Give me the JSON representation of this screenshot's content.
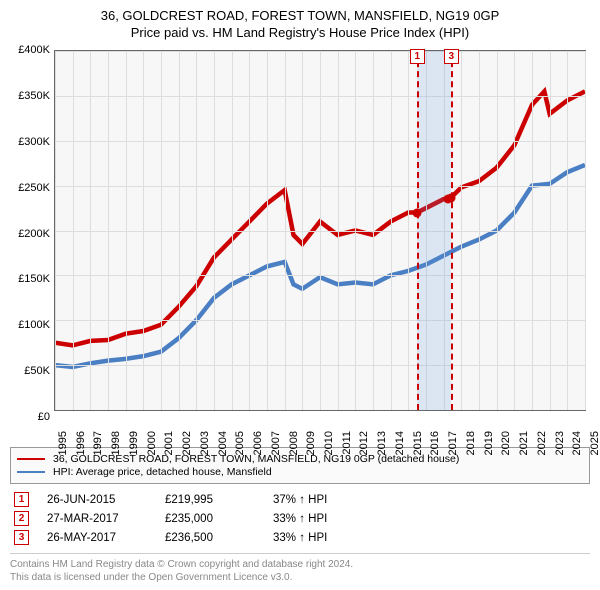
{
  "title_line1": "36, GOLDCREST ROAD, FOREST TOWN, MANSFIELD, NG19 0GP",
  "title_line2": "Price paid vs. HM Land Registry's House Price Index (HPI)",
  "chart": {
    "type": "line",
    "background_color": "#f7f7f7",
    "border_color": "#666666",
    "grid_color": "#dddddd",
    "ylim": [
      0,
      400000
    ],
    "ytick_step": 50000,
    "ytick_labels": [
      "£0",
      "£50K",
      "£100K",
      "£150K",
      "£200K",
      "£250K",
      "£300K",
      "£350K",
      "£400K"
    ],
    "xlim": [
      1995,
      2025
    ],
    "xtick_step": 1,
    "xtick_labels": [
      "1995",
      "1996",
      "1997",
      "1998",
      "1999",
      "2000",
      "2001",
      "2002",
      "2003",
      "2004",
      "2005",
      "2006",
      "2007",
      "2008",
      "2009",
      "2010",
      "2011",
      "2012",
      "2013",
      "2014",
      "2015",
      "2016",
      "2017",
      "2018",
      "2019",
      "2020",
      "2021",
      "2022",
      "2023",
      "2024",
      "2025"
    ],
    "label_fontsize": 11,
    "series": {
      "property": {
        "color": "#cc0000",
        "line_width": 1.5,
        "legend_label": "36, GOLDCREST ROAD, FOREST TOWN, MANSFIELD, NG19 0GP (detached house)",
        "data": [
          [
            1995,
            75000
          ],
          [
            1996,
            72000
          ],
          [
            1997,
            77000
          ],
          [
            1998,
            78000
          ],
          [
            1999,
            85000
          ],
          [
            2000,
            88000
          ],
          [
            2001,
            95000
          ],
          [
            2002,
            115000
          ],
          [
            2003,
            138000
          ],
          [
            2004,
            170000
          ],
          [
            2005,
            190000
          ],
          [
            2006,
            210000
          ],
          [
            2007,
            230000
          ],
          [
            2008,
            245000
          ],
          [
            2008.5,
            195000
          ],
          [
            2009,
            185000
          ],
          [
            2010,
            210000
          ],
          [
            2011,
            195000
          ],
          [
            2012,
            200000
          ],
          [
            2013,
            195000
          ],
          [
            2014,
            210000
          ],
          [
            2015,
            220000
          ],
          [
            2015.5,
            219995
          ],
          [
            2016,
            225000
          ],
          [
            2017,
            235000
          ],
          [
            2017.4,
            236500
          ],
          [
            2018,
            248000
          ],
          [
            2019,
            255000
          ],
          [
            2020,
            270000
          ],
          [
            2021,
            295000
          ],
          [
            2022,
            340000
          ],
          [
            2022.7,
            355000
          ],
          [
            2023,
            330000
          ],
          [
            2024,
            345000
          ],
          [
            2025,
            355000
          ]
        ]
      },
      "hpi": {
        "color": "#4a7fc4",
        "line_width": 1.5,
        "legend_label": "HPI: Average price, detached house, Mansfield",
        "data": [
          [
            1995,
            50000
          ],
          [
            1996,
            48000
          ],
          [
            1997,
            52000
          ],
          [
            1998,
            55000
          ],
          [
            1999,
            57000
          ],
          [
            2000,
            60000
          ],
          [
            2001,
            65000
          ],
          [
            2002,
            80000
          ],
          [
            2003,
            100000
          ],
          [
            2004,
            125000
          ],
          [
            2005,
            140000
          ],
          [
            2006,
            150000
          ],
          [
            2007,
            160000
          ],
          [
            2008,
            165000
          ],
          [
            2008.5,
            140000
          ],
          [
            2009,
            135000
          ],
          [
            2010,
            148000
          ],
          [
            2011,
            140000
          ],
          [
            2012,
            142000
          ],
          [
            2013,
            140000
          ],
          [
            2014,
            150000
          ],
          [
            2015,
            155000
          ],
          [
            2016,
            162000
          ],
          [
            2017,
            172000
          ],
          [
            2018,
            182000
          ],
          [
            2019,
            190000
          ],
          [
            2020,
            200000
          ],
          [
            2021,
            220000
          ],
          [
            2022,
            250000
          ],
          [
            2023,
            252000
          ],
          [
            2024,
            265000
          ],
          [
            2025,
            273000
          ]
        ]
      }
    },
    "sale_markers": [
      {
        "num": "1",
        "x": 2015.48,
        "y": 219995,
        "box_color": "#cc0000"
      },
      {
        "num": "2",
        "x": 2017.23,
        "y": 235000,
        "box_color": "#cc0000",
        "hidden_on_chart": true
      },
      {
        "num": "3",
        "x": 2017.4,
        "y": 236500,
        "box_color": "#cc0000"
      }
    ],
    "highlight_band": {
      "x_from": 2015.48,
      "x_to": 2017.4,
      "color": "rgba(100,150,220,0.18)"
    }
  },
  "legend_colors": {
    "property": "#cc0000",
    "hpi": "#4a7fc4"
  },
  "sales": [
    {
      "num": "1",
      "date": "26-JUN-2015",
      "price": "£219,995",
      "diff": "37%",
      "arrow": "↑",
      "cmp": "HPI",
      "box_color": "#cc0000"
    },
    {
      "num": "2",
      "date": "27-MAR-2017",
      "price": "£235,000",
      "diff": "33%",
      "arrow": "↑",
      "cmp": "HPI",
      "box_color": "#cc0000"
    },
    {
      "num": "3",
      "date": "26-MAY-2017",
      "price": "£236,500",
      "diff": "33%",
      "arrow": "↑",
      "cmp": "HPI",
      "box_color": "#cc0000"
    }
  ],
  "footer_line1": "Contains HM Land Registry data © Crown copyright and database right 2024.",
  "footer_line2": "This data is licensed under the Open Government Licence v3.0.",
  "text_colors": {
    "footer": "#888888",
    "body": "#000000"
  }
}
